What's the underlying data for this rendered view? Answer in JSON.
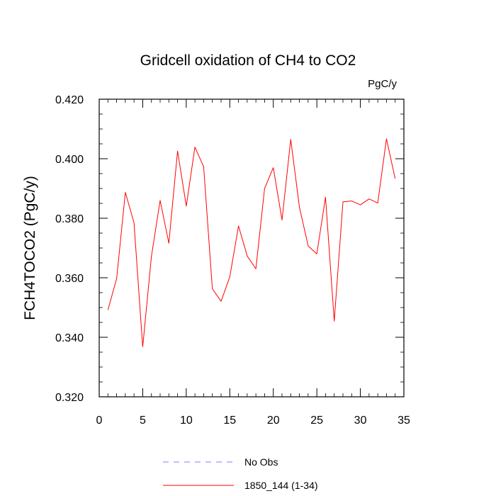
{
  "chart_data": {
    "type": "line",
    "title": "Gridcell oxidation of CH4 to CO2",
    "units": "PgC/y",
    "xlabel": "",
    "ylabel": "FCH4TOCO2  (PgC/y)",
    "xlim": [
      0,
      35
    ],
    "ylim": [
      0.32,
      0.42
    ],
    "xticks": [
      0,
      5,
      10,
      15,
      20,
      25,
      30,
      35
    ],
    "xtick_labels": [
      "0",
      "5",
      "10",
      "15",
      "20",
      "25",
      "30",
      "35"
    ],
    "yticks": [
      0.32,
      0.34,
      0.36,
      0.38,
      0.4,
      0.42
    ],
    "ytick_labels": [
      "0.320",
      "0.340",
      "0.360",
      "0.380",
      "0.400",
      "0.420"
    ],
    "series": [
      {
        "name": "1850_144 (1-34)",
        "color": "#ff0000",
        "x": [
          1,
          2,
          3,
          4,
          5,
          6,
          7,
          8,
          9,
          10,
          11,
          12,
          13,
          14,
          15,
          16,
          17,
          18,
          19,
          20,
          21,
          22,
          23,
          24,
          25,
          26,
          27,
          28,
          29,
          30,
          31,
          32,
          33,
          34
        ],
        "values": [
          0.3492,
          0.3597,
          0.3887,
          0.3785,
          0.3368,
          0.3672,
          0.386,
          0.3716,
          0.4026,
          0.3841,
          0.4039,
          0.3973,
          0.3563,
          0.3521,
          0.3603,
          0.3774,
          0.3673,
          0.363,
          0.39,
          0.397,
          0.3794,
          0.4065,
          0.3837,
          0.3707,
          0.368,
          0.3871,
          0.3454,
          0.3855,
          0.3858,
          0.3845,
          0.3865,
          0.3851,
          0.4067,
          0.3933
        ]
      }
    ],
    "legend": [
      {
        "label": "No Obs",
        "style": "dashed",
        "color": "#8080ff"
      },
      {
        "label": "1850_144 (1-34)",
        "style": "solid",
        "color": "#ff0000"
      }
    ],
    "legend_position": "bottom-center"
  }
}
